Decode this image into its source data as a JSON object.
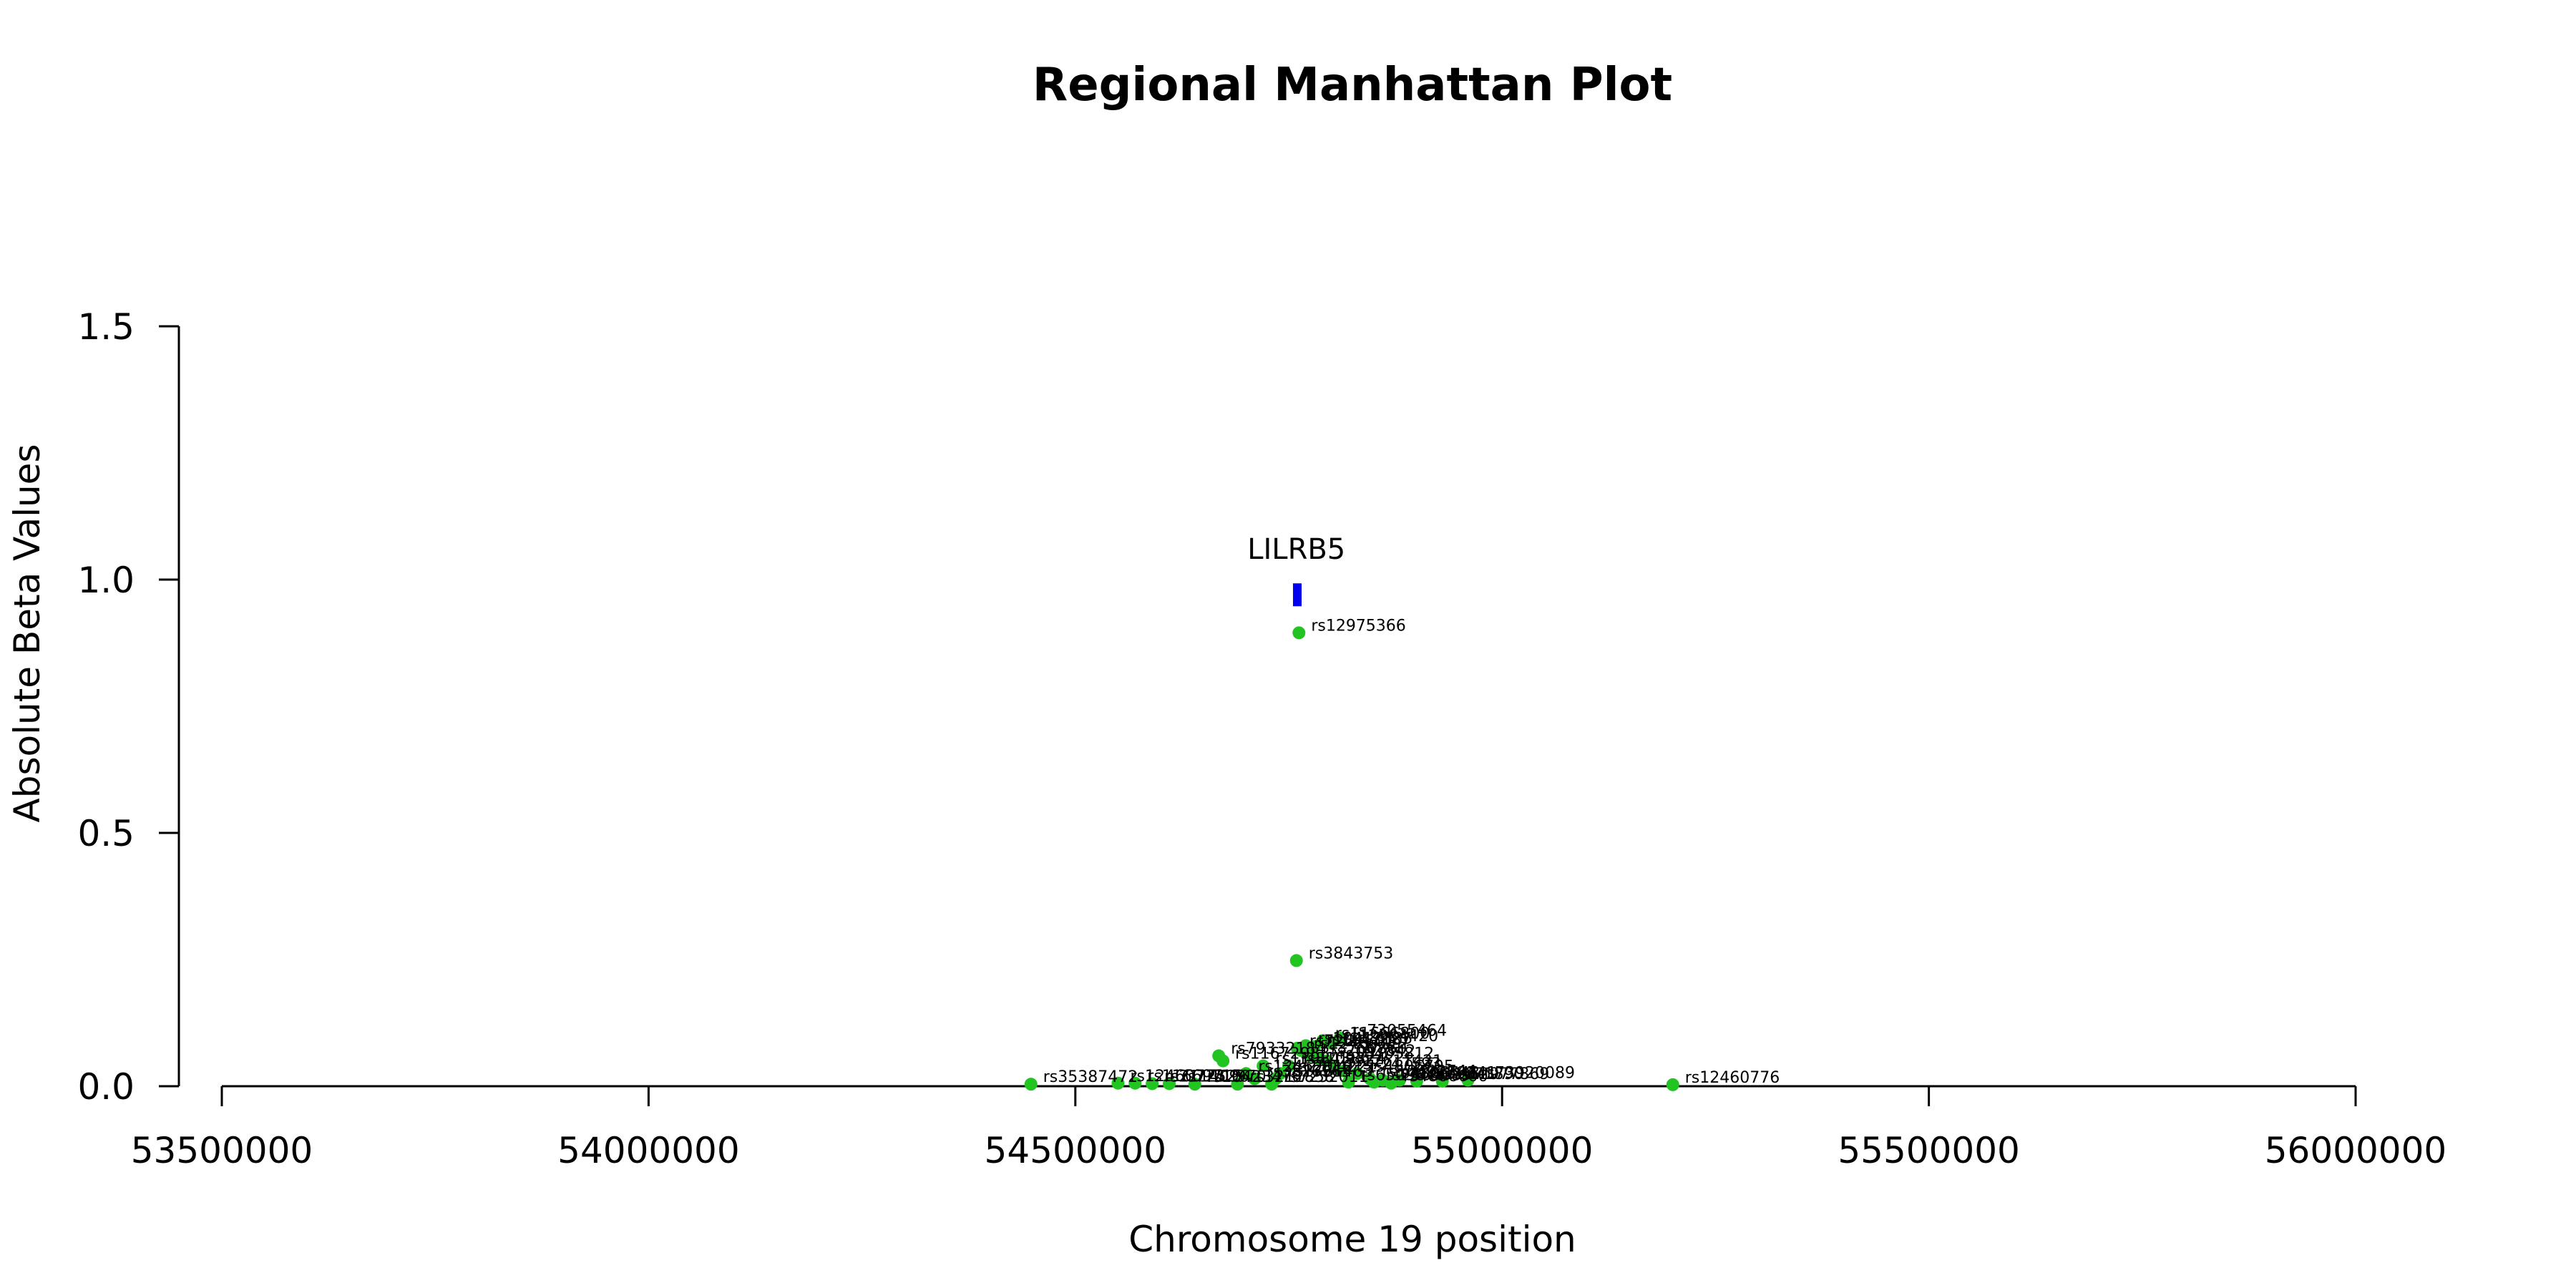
{
  "chart_data": {
    "type": "scatter",
    "title": "Regional Manhattan Plot",
    "xlabel": "Chromosome 19 position",
    "ylabel": "Absolute Beta Values",
    "xlim": [
      53500000,
      56000000
    ],
    "ylim": [
      0,
      1.5
    ],
    "x_ticks": [
      53500000,
      54000000,
      54500000,
      55000000,
      55500000,
      56000000
    ],
    "y_ticks": [
      0.0,
      0.5,
      1.0,
      1.5
    ],
    "x_tick_labels": [
      "53500000",
      "54000000",
      "54500000",
      "55000000",
      "55500000",
      "56000000"
    ],
    "y_tick_labels": [
      "0.0",
      "0.5",
      "1.0",
      "1.5"
    ],
    "point_color": "#22c422",
    "gene_color": "#0000ee",
    "genes": [
      {
        "name": "LILRB5",
        "start": 54755000,
        "end": 54763000,
        "y": 0.97
      }
    ],
    "points": [
      {
        "x": 54762000,
        "y": 0.895,
        "label": "rs12975366"
      },
      {
        "x": 54759000,
        "y": 0.248,
        "label": "rs3843753"
      },
      {
        "x": 54810000,
        "y": 0.095,
        "label": "rs73055464"
      },
      {
        "x": 54790000,
        "y": 0.09,
        "label": "rs11666800"
      },
      {
        "x": 54800000,
        "y": 0.085,
        "label": "rs12984420"
      },
      {
        "x": 54770000,
        "y": 0.08,
        "label": "rs10412385"
      },
      {
        "x": 54780000,
        "y": 0.078,
        "label": "rs1043187"
      },
      {
        "x": 54760000,
        "y": 0.075,
        "label": "rs7254601"
      },
      {
        "x": 54765000,
        "y": 0.07,
        "label": "rs12460112"
      },
      {
        "x": 54668000,
        "y": 0.06,
        "label": "rs79332184"
      },
      {
        "x": 54673000,
        "y": 0.05,
        "label": "rs11672983"
      },
      {
        "x": 54775000,
        "y": 0.06,
        "label": "rs3760860"
      },
      {
        "x": 54785000,
        "y": 0.055,
        "label": "rs2097842"
      },
      {
        "x": 54795000,
        "y": 0.05,
        "label": "rs10405812"
      },
      {
        "x": 54720000,
        "y": 0.04,
        "label": "rs11084386"
      },
      {
        "x": 54750000,
        "y": 0.04,
        "label": "rs8109324"
      },
      {
        "x": 54805000,
        "y": 0.035,
        "label": "rs12611421"
      },
      {
        "x": 54815000,
        "y": 0.03,
        "label": "rs7247593"
      },
      {
        "x": 54700000,
        "y": 0.025,
        "label": "rs12462010"
      },
      {
        "x": 54740000,
        "y": 0.025,
        "label": "rs2304221"
      },
      {
        "x": 54830000,
        "y": 0.025,
        "label": "rs4806705"
      },
      {
        "x": 54710000,
        "y": 0.015,
        "label": "rs3826963"
      },
      {
        "x": 54735000,
        "y": 0.015,
        "label": "rs1761463"
      },
      {
        "x": 54845000,
        "y": 0.015,
        "label": "rs10402744"
      },
      {
        "x": 54860000,
        "y": 0.012,
        "label": "rs4806548"
      },
      {
        "x": 54880000,
        "y": 0.012,
        "label": "rs7259341"
      },
      {
        "x": 54900000,
        "y": 0.01,
        "label": "rs11671890"
      },
      {
        "x": 54930000,
        "y": 0.01,
        "label": "rs12977869"
      },
      {
        "x": 54960000,
        "y": 0.012,
        "label": "rs73920089"
      },
      {
        "x": 54820000,
        "y": 0.008,
        "label": "rs6509840"
      },
      {
        "x": 54850000,
        "y": 0.008,
        "label": "rs2569689"
      },
      {
        "x": 54870000,
        "y": 0.006,
        "label": "rs4806600"
      },
      {
        "x": 54448000,
        "y": 0.004,
        "label": "rs35387472"
      },
      {
        "x": 54550000,
        "y": 0.006,
        "label": "rs12460773"
      },
      {
        "x": 54570000,
        "y": 0.006,
        "label": "rs11669715"
      },
      {
        "x": 54590000,
        "y": 0.005,
        "label": "rs2114096"
      },
      {
        "x": 54610000,
        "y": 0.005,
        "label": "rs7252970"
      },
      {
        "x": 54640000,
        "y": 0.004,
        "label": "rs10423476"
      },
      {
        "x": 54690000,
        "y": 0.004,
        "label": "rs3212858"
      },
      {
        "x": 54730000,
        "y": 0.004,
        "label": "rs7252011"
      },
      {
        "x": 55200000,
        "y": 0.003,
        "label": "rs12460776"
      }
    ]
  }
}
